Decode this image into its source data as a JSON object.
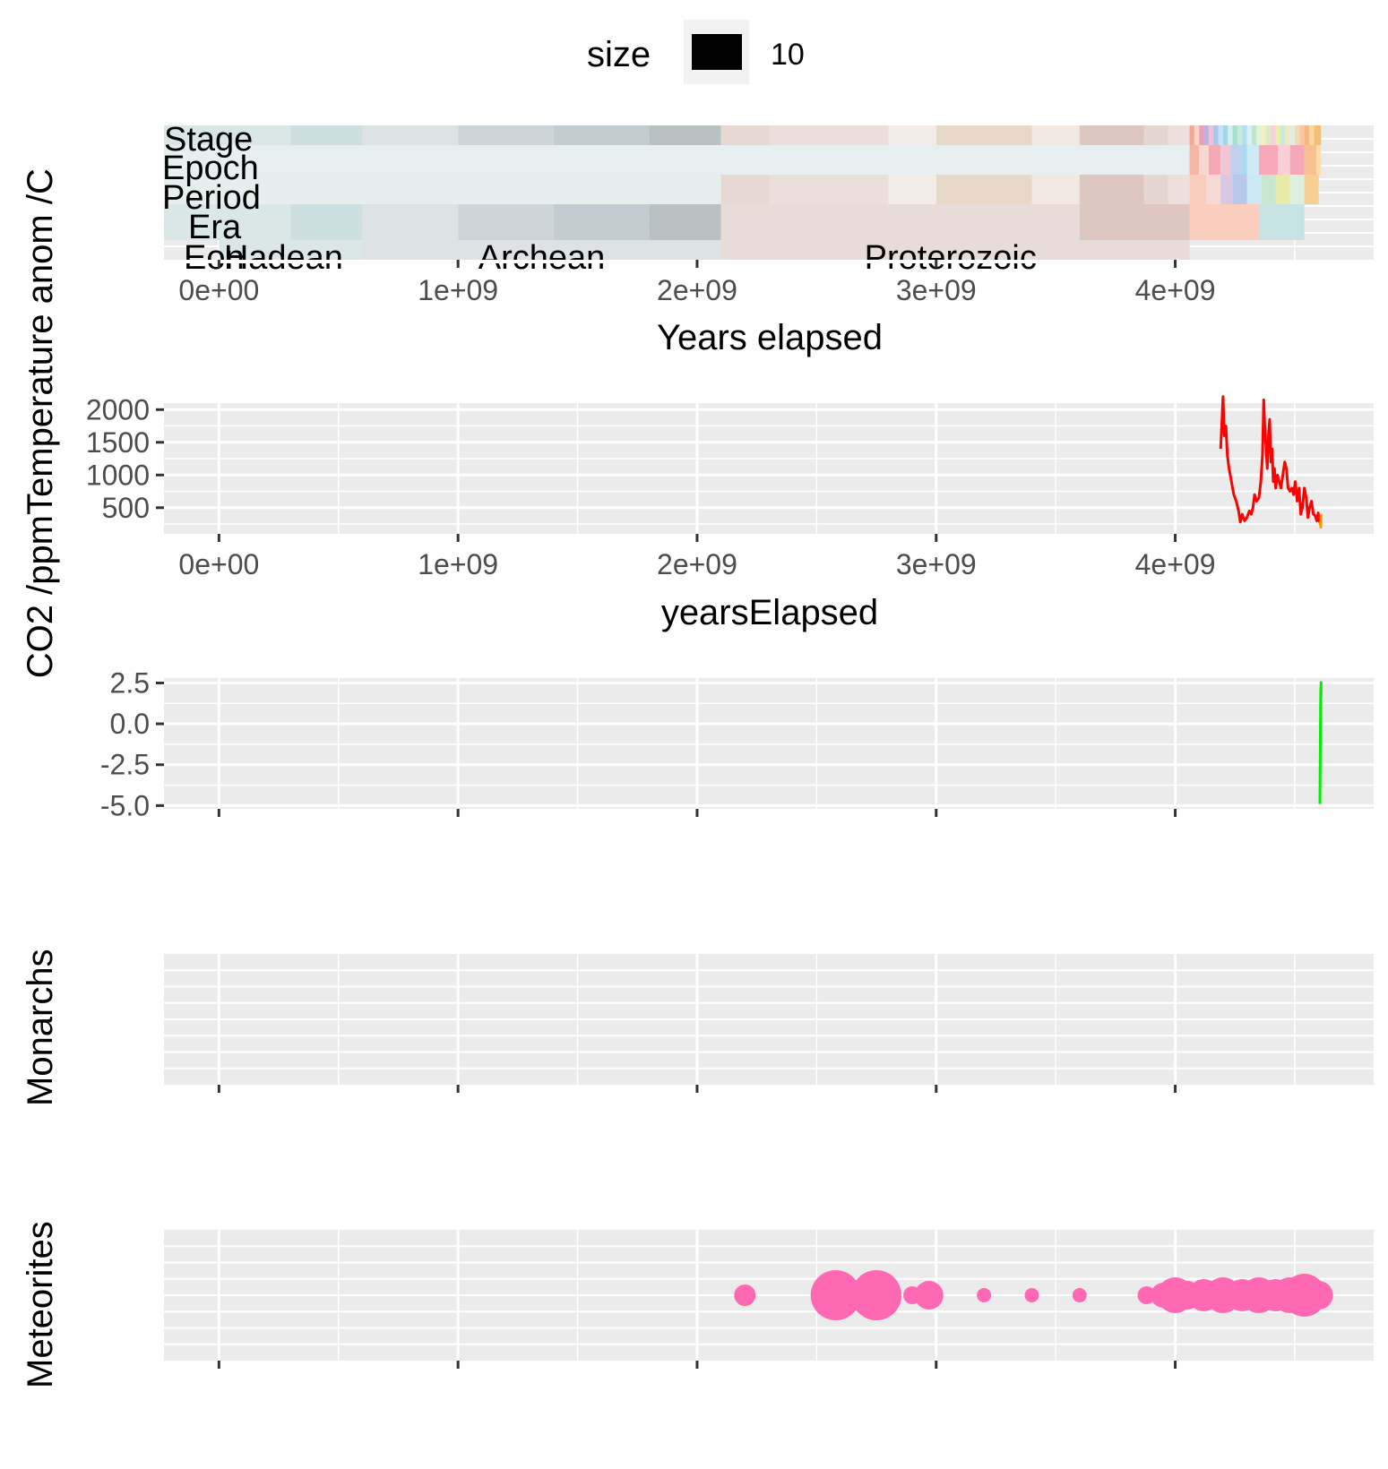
{
  "legend": {
    "title": "size",
    "key_color": "#000000",
    "value": "10"
  },
  "x_tick_labels": [
    "0e+00",
    "1e+09",
    "2e+09",
    "3e+09",
    "4e+09"
  ],
  "chart_data": [
    {
      "type": "timeline",
      "xlabel": "Years elapsed",
      "xlim": [
        -230000000,
        4830000000
      ],
      "rows": [
        "Stage",
        "Epoch",
        "Period",
        "Era",
        "Eon"
      ],
      "eon_labels": [
        {
          "text": "Hadean",
          "x": 270000000
        },
        {
          "text": "Archean",
          "x": 1350000000
        },
        {
          "text": "Proterozoic",
          "x": 3060000000
        }
      ],
      "segments": {
        "Eon": [
          {
            "x0": 0,
            "x1": 600000000,
            "color": "#dbe6e7"
          },
          {
            "x0": 600000000,
            "x1": 2100000000,
            "color": "#dde2e4"
          },
          {
            "x0": 2100000000,
            "x1": 4060000000,
            "color": "#e8dcd8"
          }
        ],
        "Era": [
          {
            "x0": -230000000,
            "x1": 300000000,
            "color": "#d9e7e7"
          },
          {
            "x0": 300000000,
            "x1": 600000000,
            "color": "#cddfe0"
          },
          {
            "x0": 600000000,
            "x1": 1000000000,
            "color": "#dde2e4"
          },
          {
            "x0": 1000000000,
            "x1": 1400000000,
            "color": "#ced5d8"
          },
          {
            "x0": 1400000000,
            "x1": 1800000000,
            "color": "#c3ccd0"
          },
          {
            "x0": 1800000000,
            "x1": 2100000000,
            "color": "#b9c1c3"
          },
          {
            "x0": 2100000000,
            "x1": 3600000000,
            "color": "#e8dcd8"
          },
          {
            "x0": 3600000000,
            "x1": 4060000000,
            "color": "#ddc7c0"
          },
          {
            "x0": 4060000000,
            "x1": 4350000000,
            "color": "#facdbf"
          },
          {
            "x0": 4350000000,
            "x1": 4540000000,
            "color": "#c7e3e3"
          }
        ],
        "Period": [
          {
            "x0": -230000000,
            "x1": 2100000000,
            "color": "#e6eeee"
          },
          {
            "x0": 2100000000,
            "x1": 2300000000,
            "color": "#e8d8d4"
          },
          {
            "x0": 2300000000,
            "x1": 2800000000,
            "color": "#ebdfdb"
          },
          {
            "x0": 2800000000,
            "x1": 3000000000,
            "color": "#f3ebe8"
          },
          {
            "x0": 3000000000,
            "x1": 3400000000,
            "color": "#e8d8c8"
          },
          {
            "x0": 3400000000,
            "x1": 3600000000,
            "color": "#f2e8e2"
          },
          {
            "x0": 3600000000,
            "x1": 3870000000,
            "color": "#ddc7c0"
          },
          {
            "x0": 3870000000,
            "x1": 3970000000,
            "color": "#e6d6d2"
          },
          {
            "x0": 3970000000,
            "x1": 4060000000,
            "color": "#ede0dc"
          },
          {
            "x0": 4060000000,
            "x1": 4130000000,
            "color": "#f8cdb9"
          },
          {
            "x0": 4130000000,
            "x1": 4190000000,
            "color": "#f6d9d7"
          },
          {
            "x0": 4190000000,
            "x1": 4240000000,
            "color": "#d8c8e4"
          },
          {
            "x0": 4240000000,
            "x1": 4300000000,
            "color": "#b8c8e8"
          },
          {
            "x0": 4300000000,
            "x1": 4360000000,
            "color": "#cde8f0"
          },
          {
            "x0": 4360000000,
            "x1": 4420000000,
            "color": "#c8e6d0"
          },
          {
            "x0": 4420000000,
            "x1": 4480000000,
            "color": "#e8eba8"
          },
          {
            "x0": 4480000000,
            "x1": 4540000000,
            "color": "#ddf0e0"
          },
          {
            "x0": 4540000000,
            "x1": 4600000000,
            "color": "#f5cf93"
          }
        ],
        "Epoch": [
          {
            "x0": -230000000,
            "x1": 4060000000,
            "color": "#e7eff0"
          },
          {
            "x0": 4060000000,
            "x1": 4100000000,
            "color": "#f5b5a7"
          },
          {
            "x0": 4100000000,
            "x1": 4140000000,
            "color": "#f9d8d0"
          },
          {
            "x0": 4140000000,
            "x1": 4190000000,
            "color": "#f4a9b5"
          },
          {
            "x0": 4190000000,
            "x1": 4230000000,
            "color": "#f0c6d6"
          },
          {
            "x0": 4230000000,
            "x1": 4280000000,
            "color": "#bfd1ee"
          },
          {
            "x0": 4280000000,
            "x1": 4300000000,
            "color": "#a7d9f0"
          },
          {
            "x0": 4300000000,
            "x1": 4350000000,
            "color": "#cfeaf6"
          },
          {
            "x0": 4350000000,
            "x1": 4430000000,
            "color": "#f8a8b8"
          },
          {
            "x0": 4430000000,
            "x1": 4480000000,
            "color": "#f9d0d8"
          },
          {
            "x0": 4480000000,
            "x1": 4540000000,
            "color": "#f5a9b8"
          },
          {
            "x0": 4540000000,
            "x1": 4590000000,
            "color": "#f6c090"
          },
          {
            "x0": 4590000000,
            "x1": 4610000000,
            "color": "#f8e0a8"
          }
        ],
        "Stage": [
          {
            "x0": -230000000,
            "x1": 300000000,
            "color": "#d9e7e7"
          },
          {
            "x0": 300000000,
            "x1": 600000000,
            "color": "#cddfe0"
          },
          {
            "x0": 600000000,
            "x1": 1000000000,
            "color": "#dde2e4"
          },
          {
            "x0": 1000000000,
            "x1": 1400000000,
            "color": "#ced5d8"
          },
          {
            "x0": 1400000000,
            "x1": 1800000000,
            "color": "#c3ccd0"
          },
          {
            "x0": 1800000000,
            "x1": 2100000000,
            "color": "#b9c1c3"
          },
          {
            "x0": 2100000000,
            "x1": 2300000000,
            "color": "#e8d8d4"
          },
          {
            "x0": 2300000000,
            "x1": 2800000000,
            "color": "#ebdfdb"
          },
          {
            "x0": 2800000000,
            "x1": 3000000000,
            "color": "#f3ebe8"
          },
          {
            "x0": 3000000000,
            "x1": 3400000000,
            "color": "#e8d8c8"
          },
          {
            "x0": 3400000000,
            "x1": 3600000000,
            "color": "#f2e8e2"
          },
          {
            "x0": 3600000000,
            "x1": 3870000000,
            "color": "#ddc7c0"
          },
          {
            "x0": 3870000000,
            "x1": 3970000000,
            "color": "#e6d6d2"
          },
          {
            "x0": 3970000000,
            "x1": 4060000000,
            "color": "#ede0dc"
          },
          {
            "x0": 4060000000,
            "x1": 4080000000,
            "color": "#f4a898"
          },
          {
            "x0": 4080000000,
            "x1": 4100000000,
            "color": "#f9d4c8"
          },
          {
            "x0": 4100000000,
            "x1": 4120000000,
            "color": "#e8a0b8"
          },
          {
            "x0": 4120000000,
            "x1": 4140000000,
            "color": "#c0b0e0"
          },
          {
            "x0": 4140000000,
            "x1": 4160000000,
            "color": "#f0c0d8"
          },
          {
            "x0": 4160000000,
            "x1": 4180000000,
            "color": "#a8c8e8"
          },
          {
            "x0": 4180000000,
            "x1": 4200000000,
            "color": "#c8e0f8"
          },
          {
            "x0": 4200000000,
            "x1": 4220000000,
            "color": "#9fd8e8"
          },
          {
            "x0": 4220000000,
            "x1": 4240000000,
            "color": "#d0f0f0"
          },
          {
            "x0": 4240000000,
            "x1": 4260000000,
            "color": "#a8e0d0"
          },
          {
            "x0": 4260000000,
            "x1": 4280000000,
            "color": "#c8ecd8"
          },
          {
            "x0": 4280000000,
            "x1": 4300000000,
            "color": "#b0e0f0"
          },
          {
            "x0": 4300000000,
            "x1": 4320000000,
            "color": "#d8f0f8"
          },
          {
            "x0": 4320000000,
            "x1": 4340000000,
            "color": "#c0e8c8"
          },
          {
            "x0": 4340000000,
            "x1": 4360000000,
            "color": "#e0f4d8"
          },
          {
            "x0": 4360000000,
            "x1": 4380000000,
            "color": "#f0f0c0"
          },
          {
            "x0": 4380000000,
            "x1": 4400000000,
            "color": "#d8ecc8"
          },
          {
            "x0": 4400000000,
            "x1": 4420000000,
            "color": "#f8d0d8"
          },
          {
            "x0": 4420000000,
            "x1": 4440000000,
            "color": "#e8f0b0"
          },
          {
            "x0": 4440000000,
            "x1": 4460000000,
            "color": "#c8e8e0"
          },
          {
            "x0": 4460000000,
            "x1": 4480000000,
            "color": "#f0e8c0"
          },
          {
            "x0": 4480000000,
            "x1": 4500000000,
            "color": "#e0f0e0"
          },
          {
            "x0": 4500000000,
            "x1": 4520000000,
            "color": "#f4d8b8"
          },
          {
            "x0": 4520000000,
            "x1": 4540000000,
            "color": "#f8c8a0"
          },
          {
            "x0": 4540000000,
            "x1": 4560000000,
            "color": "#f6b880"
          },
          {
            "x0": 4560000000,
            "x1": 4580000000,
            "color": "#f8d8a0"
          },
          {
            "x0": 4580000000,
            "x1": 4610000000,
            "color": "#f4c070"
          }
        ]
      }
    },
    {
      "type": "line",
      "xlabel": "yearsElapsed",
      "ylabel": "CO2 /ppm",
      "xlim": [
        -230000000,
        4830000000
      ],
      "ylim": [
        100,
        2100
      ],
      "y_tick_labels": [
        "500",
        "1000",
        "1500",
        "2000"
      ],
      "y_ticks": [
        500,
        1000,
        1500,
        2000
      ],
      "series": [
        {
          "color": "#ff0000",
          "x": [
            4190000000,
            4200000000,
            4205000000,
            4212000000,
            4218000000,
            4225000000,
            4235000000,
            4245000000,
            4255000000,
            4265000000,
            4272000000,
            4280000000,
            4290000000,
            4300000000,
            4310000000,
            4318000000,
            4325000000,
            4332000000,
            4340000000,
            4350000000,
            4358000000,
            4365000000,
            4370000000,
            4375000000,
            4380000000,
            4385000000,
            4390000000,
            4395000000,
            4400000000,
            4405000000,
            4410000000,
            4415000000,
            4420000000,
            4428000000,
            4435000000,
            4442000000,
            4450000000,
            4458000000,
            4465000000,
            4472000000,
            4480000000,
            4488000000,
            4495000000,
            4502000000,
            4510000000,
            4518000000,
            4525000000,
            4532000000,
            4540000000,
            4548000000,
            4555000000,
            4562000000,
            4570000000,
            4578000000,
            4585000000,
            4592000000,
            4598000000,
            4603000000
          ],
          "y": [
            1400,
            2200,
            1600,
            1750,
            1300,
            1100,
            900,
            700,
            600,
            450,
            280,
            400,
            300,
            350,
            450,
            400,
            500,
            700,
            600,
            650,
            900,
            1300,
            2150,
            1700,
            1400,
            1100,
            1600,
            1850,
            1200,
            1400,
            900,
            1100,
            800,
            1000,
            900,
            800,
            1000,
            1200,
            1100,
            800,
            750,
            800,
            700,
            900,
            600,
            800,
            400,
            500,
            800,
            650,
            350,
            500,
            600,
            400,
            380,
            300,
            420,
            280
          ]
        },
        {
          "color": "#ff9900",
          "x": [
            4603000000,
            4607000000,
            4609000000,
            4610000000
          ],
          "y": [
            280,
            250,
            200,
            400
          ]
        }
      ]
    },
    {
      "type": "line",
      "ylabel": "Temperature anom /C",
      "xlim": [
        -230000000,
        4830000000
      ],
      "ylim": [
        -5.2,
        2.8
      ],
      "y_tick_labels": [
        "2.5",
        "0.0",
        "-2.5",
        "-5.0"
      ],
      "y_ticks": [
        2.5,
        0.0,
        -2.5,
        -5.0
      ],
      "series": [
        {
          "color": "#00ee00",
          "x": [
            4605000000,
            4605500000,
            4606000000,
            4606500000,
            4607000000,
            4607500000,
            4608000000,
            4608500000,
            4609000000,
            4609500000,
            4610000000
          ],
          "y": [
            -4.9,
            -4.2,
            -3.1,
            -2.0,
            -0.8,
            0.3,
            1.2,
            1.8,
            2.2,
            1.6,
            2.6
          ]
        }
      ]
    },
    {
      "type": "scatter",
      "ylabel": "Monarchs",
      "xlim": [
        -230000000,
        4830000000
      ],
      "series": []
    },
    {
      "type": "scatter",
      "ylabel": "Meteorites",
      "xlim": [
        -230000000,
        4830000000
      ],
      "series": [
        {
          "color": "#ff69b4",
          "x": [
            2200000000,
            2580000000,
            2750000000,
            2900000000,
            2970000000,
            3200000000,
            3400000000,
            3600000000,
            3880000000,
            3950000000,
            4000000000,
            4050000000,
            4120000000,
            4200000000,
            4280000000,
            4350000000,
            4420000000,
            4480000000,
            4540000000,
            4600000000
          ],
          "size": [
            6,
            14,
            14,
            5,
            8,
            4,
            4,
            4,
            5,
            7,
            10,
            8,
            9,
            10,
            9,
            10,
            9,
            10,
            12,
            8
          ]
        }
      ]
    }
  ]
}
